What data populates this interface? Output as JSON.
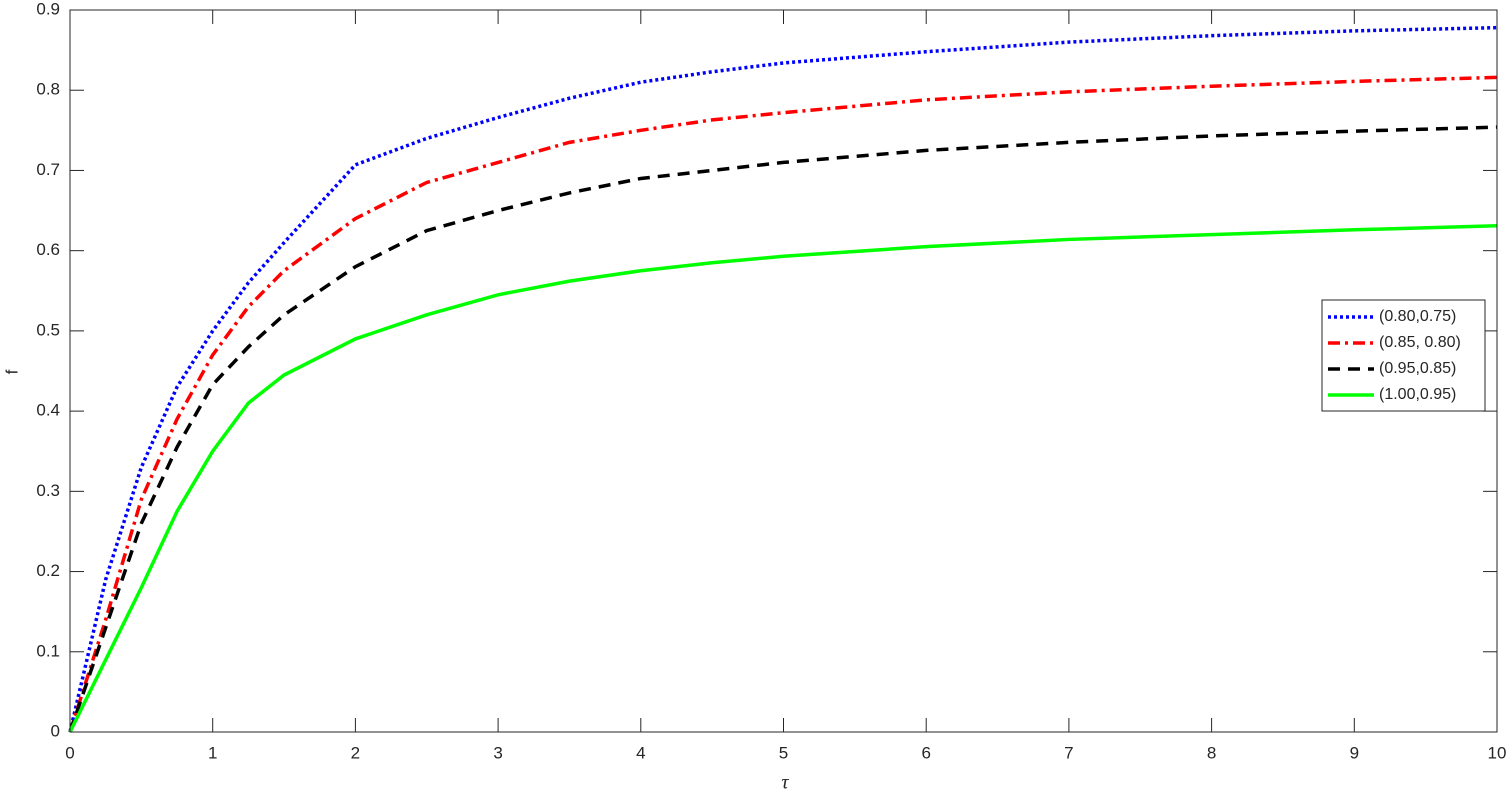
{
  "chart_data": {
    "type": "line",
    "x_label": "τ",
    "y_label": "f",
    "x": [
      0,
      0.25,
      0.5,
      0.75,
      1,
      1.25,
      1.5,
      2,
      2.5,
      3,
      3.5,
      4,
      4.5,
      5,
      6,
      7,
      8,
      9,
      10
    ],
    "series": [
      {
        "name": "(0.80,0.75)",
        "color": "#0000ff",
        "dash": "dotted",
        "values": [
          0,
          0.19,
          0.33,
          0.43,
          0.5,
          0.56,
          0.61,
          0.707,
          0.74,
          0.766,
          0.79,
          0.81,
          0.823,
          0.834,
          0.848,
          0.86,
          0.868,
          0.874,
          0.878
        ]
      },
      {
        "name": "(0.85, 0.80)",
        "color": "#ff0000",
        "dash": "dashdot",
        "values": [
          0,
          0.14,
          0.29,
          0.39,
          0.47,
          0.53,
          0.575,
          0.64,
          0.685,
          0.71,
          0.735,
          0.75,
          0.763,
          0.772,
          0.788,
          0.798,
          0.805,
          0.811,
          0.816
        ]
      },
      {
        "name": "(0.95,0.85)",
        "color": "#000000",
        "dash": "dashed",
        "values": [
          0,
          0.13,
          0.26,
          0.355,
          0.433,
          0.48,
          0.52,
          0.58,
          0.625,
          0.65,
          0.672,
          0.69,
          0.7,
          0.71,
          0.725,
          0.735,
          0.743,
          0.749,
          0.754
        ]
      },
      {
        "name": "(1.00,0.95)",
        "color": "#00ff00",
        "dash": "solid",
        "values": [
          0,
          0.09,
          0.18,
          0.275,
          0.35,
          0.41,
          0.445,
          0.49,
          0.52,
          0.545,
          0.562,
          0.575,
          0.585,
          0.593,
          0.605,
          0.614,
          0.62,
          0.626,
          0.631
        ]
      }
    ],
    "xlim": [
      0,
      10
    ],
    "xticks": [
      0,
      1,
      2,
      3,
      4,
      5,
      6,
      7,
      8,
      9,
      10
    ],
    "ylim": [
      0,
      0.9
    ],
    "yticks": [
      0,
      0.1,
      0.2,
      0.3,
      0.4,
      0.5,
      0.6,
      0.7,
      0.8,
      0.9
    ],
    "grid": false,
    "legend": "east"
  }
}
